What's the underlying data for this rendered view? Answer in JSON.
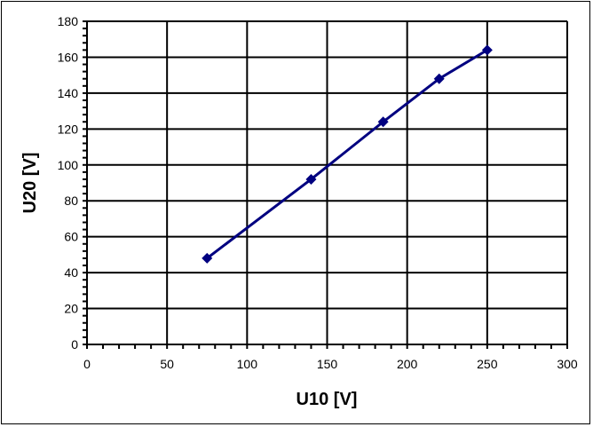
{
  "chart_data": {
    "type": "line",
    "title": "",
    "xlabel": "U10 [V]",
    "ylabel": "U20 [V]",
    "xlim": [
      0,
      300
    ],
    "ylim": [
      0,
      180
    ],
    "xticks": [
      0,
      50,
      100,
      150,
      200,
      250,
      300
    ],
    "yticks": [
      0,
      20,
      40,
      60,
      80,
      100,
      120,
      140,
      160,
      180
    ],
    "grid": true,
    "legend": null,
    "series": [
      {
        "name": "U20",
        "color": "#000080",
        "marker": "diamond",
        "x": [
          75,
          140,
          185,
          220,
          250
        ],
        "y": [
          48,
          92,
          124,
          148,
          164
        ]
      }
    ]
  },
  "labels": {
    "xlabel": "U10 [V]",
    "ylabel": "U20 [V]"
  }
}
